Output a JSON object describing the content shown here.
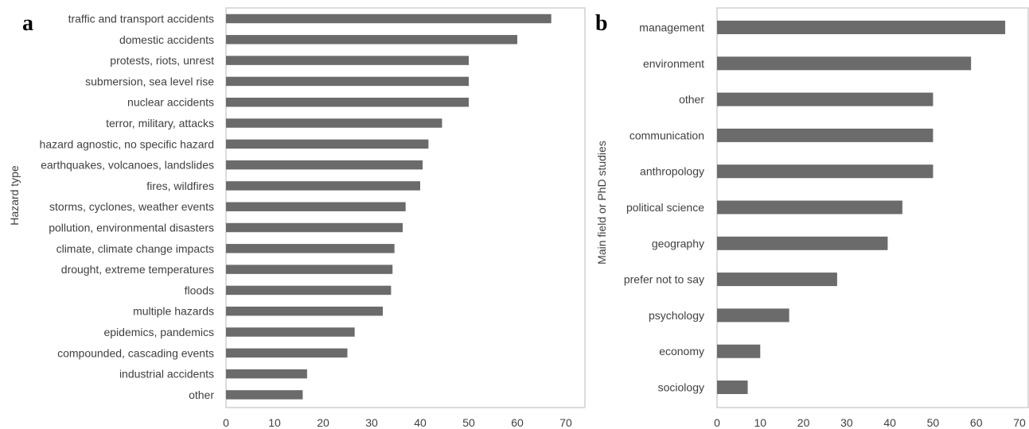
{
  "colors": {
    "bar": "#6b6b6b",
    "frame": "#d0d0d0",
    "text": "#404040"
  },
  "panels": [
    {
      "letter": "a",
      "ylabel": "Hazard type"
    },
    {
      "letter": "b",
      "ylabel": "Main field or PhD studies"
    }
  ],
  "chart_data": [
    {
      "type": "bar",
      "orientation": "horizontal",
      "title": "",
      "xlabel": "",
      "ylabel": "Hazard type",
      "xlim": [
        0,
        70
      ],
      "xticks": [
        0,
        10,
        20,
        30,
        40,
        50,
        60,
        70
      ],
      "grid": false,
      "categories": [
        "traffic and transport accidents",
        "domestic accidents",
        "protests, riots, unrest",
        "submersion, sea level rise",
        "nuclear accidents",
        "terror, military, attacks",
        "hazard agnostic, no specific hazard",
        "earthquakes, volcanoes, landslides",
        "fires, wildfires",
        "storms, cyclones, weather events",
        "pollution, environmental disasters",
        "climate, climate change impacts",
        "drought, extreme temperatures",
        "floods",
        "multiple hazards",
        "epidemics, pandemics",
        "compounded, cascading events",
        "industrial accidents",
        "other"
      ],
      "values": [
        67,
        60,
        50,
        50,
        50,
        44.5,
        41.7,
        40.5,
        40,
        37,
        36.4,
        34.7,
        34.3,
        34,
        32.3,
        26.5,
        25,
        16.7,
        15.8
      ]
    },
    {
      "type": "bar",
      "orientation": "horizontal",
      "title": "",
      "xlabel": "",
      "ylabel": "Main field or PhD studies",
      "xlim": [
        0,
        70
      ],
      "xticks": [
        0,
        10,
        20,
        30,
        40,
        50,
        60,
        70
      ],
      "grid": false,
      "categories": [
        "management",
        "environment",
        "other",
        "communication",
        "anthropology",
        "political science",
        "geography",
        "prefer not to say",
        "psychology",
        "economy",
        "sociology"
      ],
      "values": [
        66.7,
        58.8,
        50,
        50,
        50,
        42.9,
        39.5,
        27.8,
        16.7,
        10,
        7.1
      ]
    }
  ]
}
